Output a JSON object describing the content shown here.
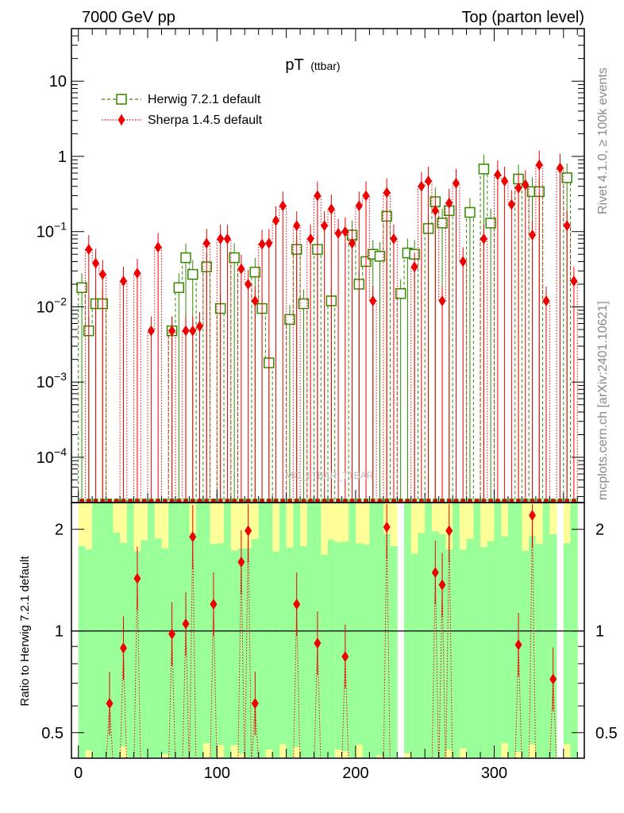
{
  "header": {
    "left": "7000 GeV pp",
    "right": "Top (parton level)"
  },
  "side_labels": {
    "rivet": "Rivet 4.1.0, ≥ 100k events",
    "mcplots": "mcplots.cern.ch [arXiv:2401.10621]"
  },
  "watermark": "MC_TTBAR_TTBAR",
  "chart_data": [
    {
      "panel": "main",
      "type": "scatter",
      "title": "pT",
      "title_sub": "(ttbar)",
      "xlabel": "",
      "ylabel": "",
      "yscale": "log",
      "xlim": [
        -5,
        365
      ],
      "ylim": [
        2.5e-05,
        50
      ],
      "y_tick_labels": [
        {
          "value": 10,
          "base": "10",
          "exp": ""
        },
        {
          "value": 1,
          "base": "1",
          "exp": ""
        },
        {
          "value": 0.1,
          "base": "10",
          "exp": "−1"
        },
        {
          "value": 0.01,
          "base": "10",
          "exp": "−2"
        },
        {
          "value": 0.001,
          "base": "10",
          "exp": "−3"
        },
        {
          "value": 0.0001,
          "base": "10",
          "exp": "−4"
        }
      ],
      "legend": [
        {
          "name": "Herwig 7.2.1 default",
          "color": "#338800",
          "marker": "open-square",
          "line": "dashed"
        },
        {
          "name": "Sherpa 1.4.5 default",
          "color": "#ee0000",
          "marker": "diamond",
          "line": "dotted"
        }
      ],
      "series": [
        {
          "name": "Herwig 7.2.1 default",
          "color": "#338800",
          "points": [
            [
              2.5,
              0.018
            ],
            [
              7.5,
              0.0048
            ],
            [
              12.5,
              0.011
            ],
            [
              17.5,
              0.011
            ],
            [
              67.5,
              0.0048
            ],
            [
              72.5,
              0.018
            ],
            [
              77.5,
              0.045
            ],
            [
              82.5,
              0.027
            ],
            [
              92.5,
              0.034
            ],
            [
              102.5,
              0.0095
            ],
            [
              112.5,
              0.045
            ],
            [
              127.5,
              0.029
            ],
            [
              132.5,
              0.0095
            ],
            [
              137.5,
              0.0018
            ],
            [
              152.5,
              0.0068
            ],
            [
              157.5,
              0.058
            ],
            [
              162.5,
              0.011
            ],
            [
              172.5,
              0.058
            ],
            [
              182.5,
              0.012
            ],
            [
              197.5,
              0.09
            ],
            [
              202.5,
              0.02
            ],
            [
              207.5,
              0.04
            ],
            [
              212.5,
              0.05
            ],
            [
              217.5,
              0.047
            ],
            [
              222.5,
              0.16
            ],
            [
              232.5,
              0.015
            ],
            [
              237.5,
              0.052
            ],
            [
              242.5,
              0.05
            ],
            [
              252.5,
              0.11
            ],
            [
              257.5,
              0.25
            ],
            [
              262.5,
              0.13
            ],
            [
              267.5,
              0.19
            ],
            [
              282.5,
              0.18
            ],
            [
              292.5,
              0.68
            ],
            [
              297.5,
              0.13
            ],
            [
              317.5,
              0.5
            ],
            [
              327.5,
              0.34
            ],
            [
              332.5,
              0.34
            ],
            [
              352.5,
              0.52
            ]
          ]
        },
        {
          "name": "Sherpa 1.4.5 default",
          "color": "#ee0000",
          "points": [
            [
              7.5,
              0.058
            ],
            [
              12.5,
              0.038
            ],
            [
              17.5,
              0.027
            ],
            [
              32.5,
              0.022
            ],
            [
              42.5,
              0.028
            ],
            [
              52.5,
              0.0048
            ],
            [
              57.5,
              0.062
            ],
            [
              67.5,
              0.0048
            ],
            [
              77.5,
              0.0048
            ],
            [
              82.5,
              0.0048
            ],
            [
              87.5,
              0.0055
            ],
            [
              92.5,
              0.07
            ],
            [
              102.5,
              0.08
            ],
            [
              107.5,
              0.08
            ],
            [
              117.5,
              0.032
            ],
            [
              122.5,
              0.02
            ],
            [
              127.5,
              0.012
            ],
            [
              132.5,
              0.068
            ],
            [
              137.5,
              0.07
            ],
            [
              142.5,
              0.14
            ],
            [
              147.5,
              0.22
            ],
            [
              157.5,
              0.12
            ],
            [
              167.5,
              0.08
            ],
            [
              172.5,
              0.3
            ],
            [
              177.5,
              0.12
            ],
            [
              182.5,
              0.2
            ],
            [
              187.5,
              0.095
            ],
            [
              192.5,
              0.1
            ],
            [
              197.5,
              0.07
            ],
            [
              202.5,
              0.22
            ],
            [
              207.5,
              0.3
            ],
            [
              212.5,
              0.012
            ],
            [
              222.5,
              0.33
            ],
            [
              227.5,
              0.08
            ],
            [
              242.5,
              0.034
            ],
            [
              247.5,
              0.4
            ],
            [
              252.5,
              0.47
            ],
            [
              257.5,
              0.19
            ],
            [
              262.5,
              0.012
            ],
            [
              267.5,
              0.24
            ],
            [
              272.5,
              0.44
            ],
            [
              277.5,
              0.04
            ],
            [
              292.5,
              0.08
            ],
            [
              302.5,
              0.57
            ],
            [
              307.5,
              0.47
            ],
            [
              312.5,
              0.23
            ],
            [
              317.5,
              0.38
            ],
            [
              322.5,
              0.42
            ],
            [
              327.5,
              0.09
            ],
            [
              332.5,
              0.77
            ],
            [
              337.5,
              0.012
            ],
            [
              347.5,
              0.7
            ],
            [
              352.5,
              0.12
            ],
            [
              357.5,
              0.022
            ]
          ]
        }
      ]
    },
    {
      "panel": "ratio",
      "type": "scatter",
      "ylabel": "Ratio to Herwig 7.2.1 default",
      "xlabel": "",
      "yscale": "log",
      "xlim": [
        -5,
        365
      ],
      "ylim": [
        0.42,
        2.4
      ],
      "x_ticks": [
        0,
        100,
        200,
        300
      ],
      "y_ticks": [
        0.5,
        1,
        2
      ],
      "reference_line": 1,
      "band_colors": {
        "stat": "#99ff99",
        "total": "#ffff99"
      },
      "series": [
        {
          "name": "Sherpa 1.4.5 default",
          "color": "#ee0000",
          "points": [
            [
              22.5,
              0.61
            ],
            [
              32.5,
              0.89
            ],
            [
              42.5,
              1.43
            ],
            [
              67.5,
              0.98
            ],
            [
              77.5,
              1.05
            ],
            [
              82.5,
              1.9
            ],
            [
              97.5,
              1.2
            ],
            [
              117.5,
              1.6
            ],
            [
              122.5,
              1.98
            ],
            [
              127.5,
              0.61
            ],
            [
              157.5,
              1.2
            ],
            [
              172.5,
              0.92
            ],
            [
              192.5,
              0.84
            ],
            [
              222.5,
              2.03
            ],
            [
              257.5,
              1.49
            ],
            [
              262.5,
              1.37
            ],
            [
              267.5,
              1.98
            ],
            [
              317.5,
              0.91
            ],
            [
              327.5,
              2.2
            ],
            [
              342.5,
              0.72
            ]
          ]
        }
      ]
    }
  ]
}
